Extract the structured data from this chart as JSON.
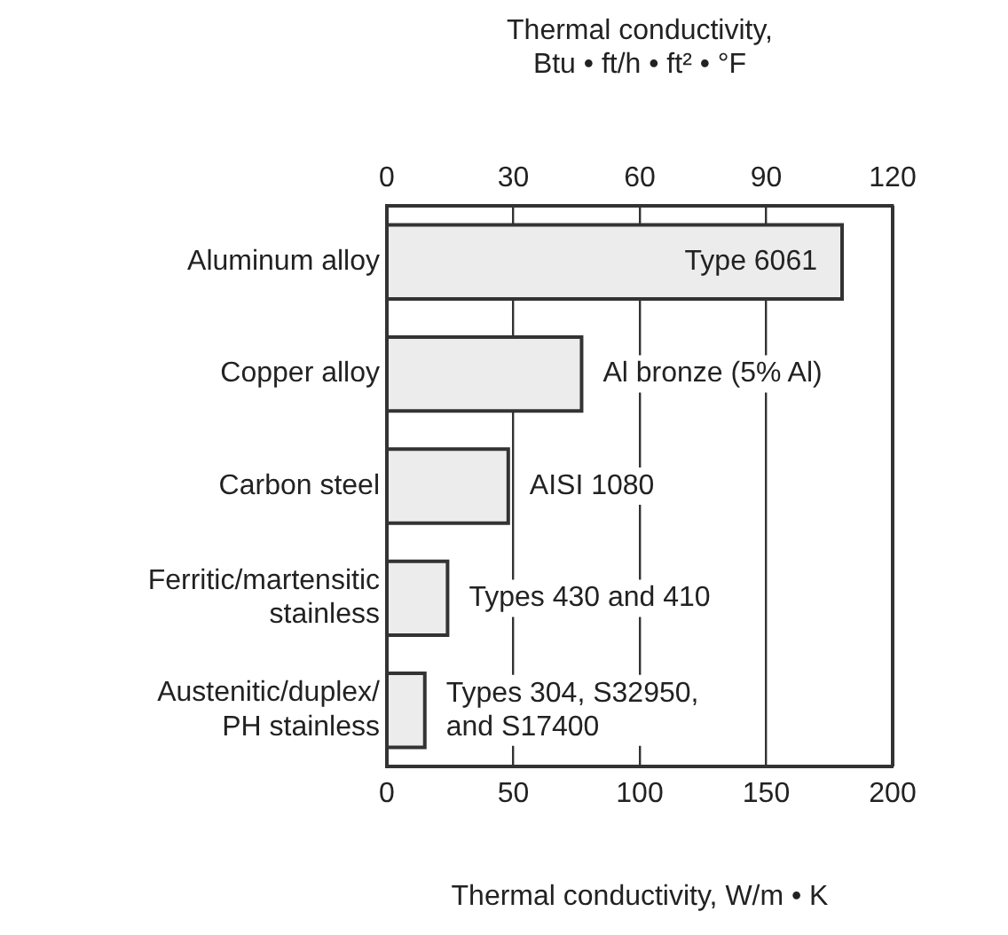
{
  "chart_data": {
    "type": "bar",
    "orientation": "horizontal",
    "categories": [
      "Aluminum alloy",
      "Copper alloy",
      "Carbon steel",
      "Ferritic/martensitic\nstainless",
      "Austenitic/duplex/\nPH stainless"
    ],
    "values": [
      180,
      77,
      48,
      24,
      15
    ],
    "color": "#ececec",
    "xlabel": "Thermal conductivity, W/m • K",
    "xlim": [
      0,
      200
    ],
    "xticks": [
      0,
      50,
      100,
      150,
      200
    ],
    "x2label": "Thermal conductivity,\nBtu • ft/h • ft² • °F",
    "x2lim": [
      0,
      120
    ],
    "x2ticks": [
      0,
      30,
      60,
      90,
      120
    ],
    "grid": "x2",
    "legend": false,
    "annotations": [
      "Type 6061",
      "Al bronze (5% Al)",
      "AISI 1080",
      "Types 430 and 410",
      "Types 304, S32950,\nand S17400"
    ]
  }
}
